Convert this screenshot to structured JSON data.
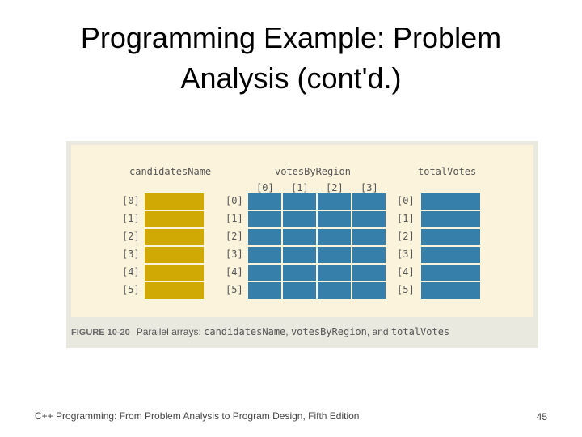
{
  "slide": {
    "title_line1": "Programming Example: Problem",
    "title_line2": "Analysis (cont'd.)"
  },
  "figure": {
    "arrays": {
      "candidates": "candidatesName",
      "votes": "votesByRegion",
      "total": "totalVotes"
    },
    "column_indices": [
      "[0]",
      "[1]",
      "[2]",
      "[3]"
    ],
    "row_indices": [
      "[0]",
      "[1]",
      "[2]",
      "[3]",
      "[4]",
      "[5]"
    ],
    "colors": {
      "candidates": "#d1a905",
      "votes": "#377fab",
      "total": "#377fab"
    },
    "caption": {
      "figure_number": "FIGURE 10-20",
      "text_lead": "Parallel arrays: ",
      "name1": "candidatesName",
      "sep1": ", ",
      "name2": "votesByRegion",
      "sep2": ", and ",
      "name3": "totalVotes"
    }
  },
  "footer": {
    "text": "C++ Programming: From Problem Analysis to Program Design, Fifth Edition",
    "page_number": "45"
  }
}
